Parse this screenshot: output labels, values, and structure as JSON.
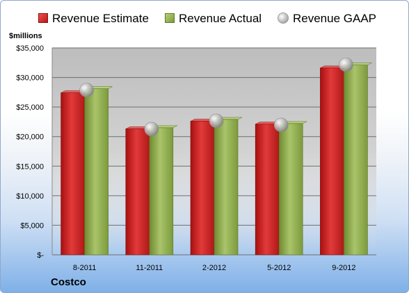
{
  "chart_data": {
    "type": "bar",
    "categories": [
      "8-2011",
      "11-2011",
      "2-2012",
      "5-2012",
      "9-2012"
    ],
    "series": [
      {
        "name": "Revenue Estimate",
        "values": [
          27400,
          21300,
          22600,
          22100,
          31600
        ],
        "color": "#c81e1e"
      },
      {
        "name": "Revenue Actual",
        "values": [
          28100,
          21500,
          22900,
          22200,
          32100
        ],
        "color": "#8fab4a"
      },
      {
        "name": "Revenue GAAP",
        "values": [
          28100,
          21500,
          22900,
          22200,
          32400
        ],
        "color": "#b0b0b0",
        "marker": "sphere"
      }
    ],
    "ylabel": "$millions",
    "yticks": [
      "$-",
      "$5,000",
      "$10,000",
      "$15,000",
      "$20,000",
      "$25,000",
      "$30,000",
      "$35,000"
    ],
    "ylim": [
      0,
      35000
    ],
    "grid": true,
    "legend_position": "top",
    "footer": "Costco"
  }
}
